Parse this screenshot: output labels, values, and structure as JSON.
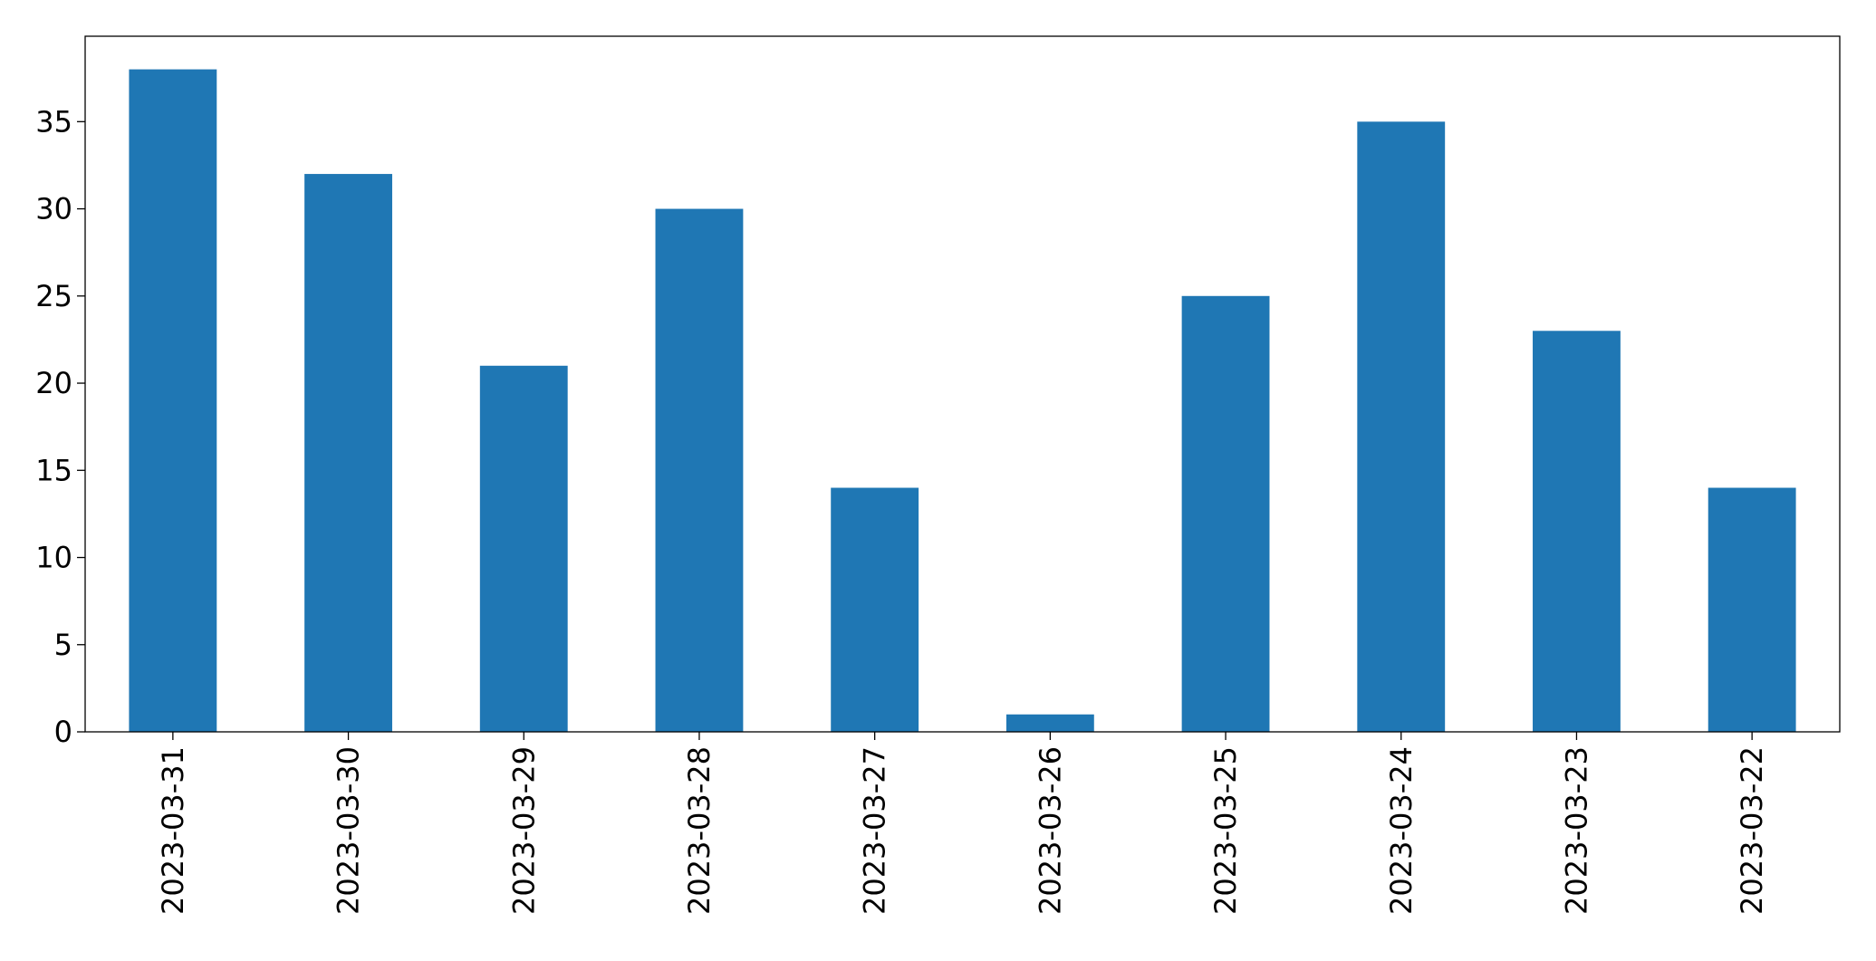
{
  "chart_data": {
    "type": "bar",
    "categories": [
      "2023-03-31",
      "2023-03-30",
      "2023-03-29",
      "2023-03-28",
      "2023-03-27",
      "2023-03-26",
      "2023-03-25",
      "2023-03-24",
      "2023-03-23",
      "2023-03-22"
    ],
    "values": [
      38,
      32,
      21,
      30,
      14,
      1,
      25,
      35,
      23,
      14
    ],
    "color": "#1f77b4",
    "ylim": [
      0,
      39.9
    ],
    "yticks": [
      0,
      5,
      10,
      15,
      20,
      25,
      30,
      35
    ],
    "grid": false
  }
}
